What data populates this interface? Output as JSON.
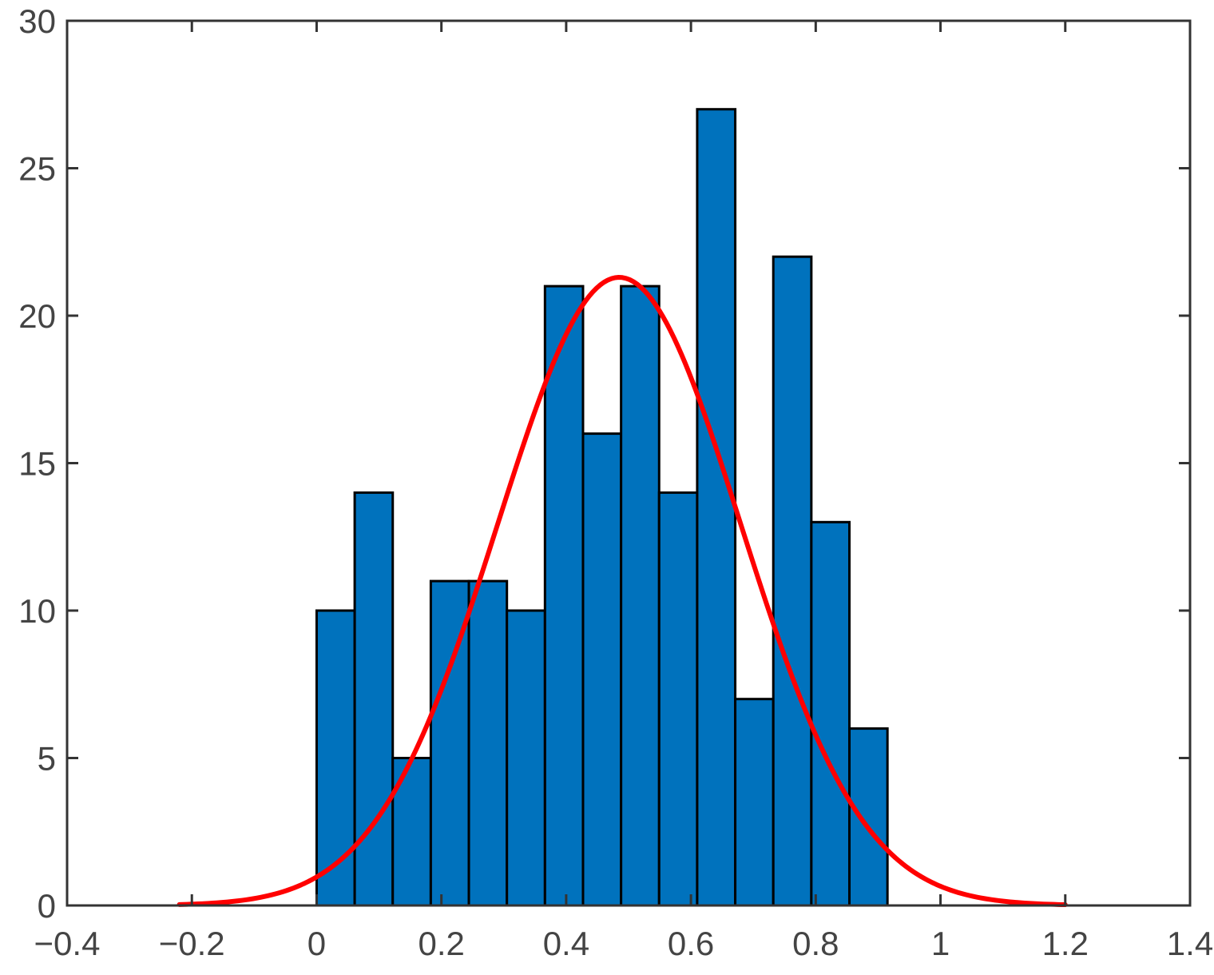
{
  "chart_data": {
    "type": "bar",
    "title": "",
    "xlabel": "",
    "ylabel": "",
    "xlim": [
      -0.4,
      1.4
    ],
    "ylim": [
      0,
      30
    ],
    "x_ticks": [
      -0.4,
      -0.2,
      0,
      0.2,
      0.4,
      0.6,
      0.8,
      1,
      1.2,
      1.4
    ],
    "x_tick_labels": [
      "−0.4",
      "−0.2",
      "0",
      "0.2",
      "0.4",
      "0.6",
      "0.8",
      "1",
      "1.2",
      "1.4"
    ],
    "y_ticks": [
      0,
      5,
      10,
      15,
      20,
      25,
      30
    ],
    "y_tick_labels": [
      "0",
      "5",
      "10",
      "15",
      "20",
      "25",
      "30"
    ],
    "grid": false,
    "bins": {
      "edges": [
        0.0,
        0.061,
        0.122,
        0.183,
        0.244,
        0.305,
        0.366,
        0.427,
        0.488,
        0.549,
        0.61,
        0.671,
        0.732,
        0.793,
        0.854,
        0.915
      ],
      "counts": [
        10,
        14,
        5,
        11,
        11,
        10,
        21,
        16,
        21,
        14,
        27,
        7,
        22,
        13,
        6
      ]
    },
    "fit_curve": {
      "type": "normal",
      "mean": 0.485,
      "std": 0.195,
      "peak": 21.3,
      "x_range": [
        -0.22,
        1.2
      ]
    },
    "colors": {
      "bar_fill": "#0072BD",
      "bar_edge": "#000000",
      "curve": "#FF0000",
      "axis": "#333333",
      "tick_text": "#444444"
    }
  }
}
